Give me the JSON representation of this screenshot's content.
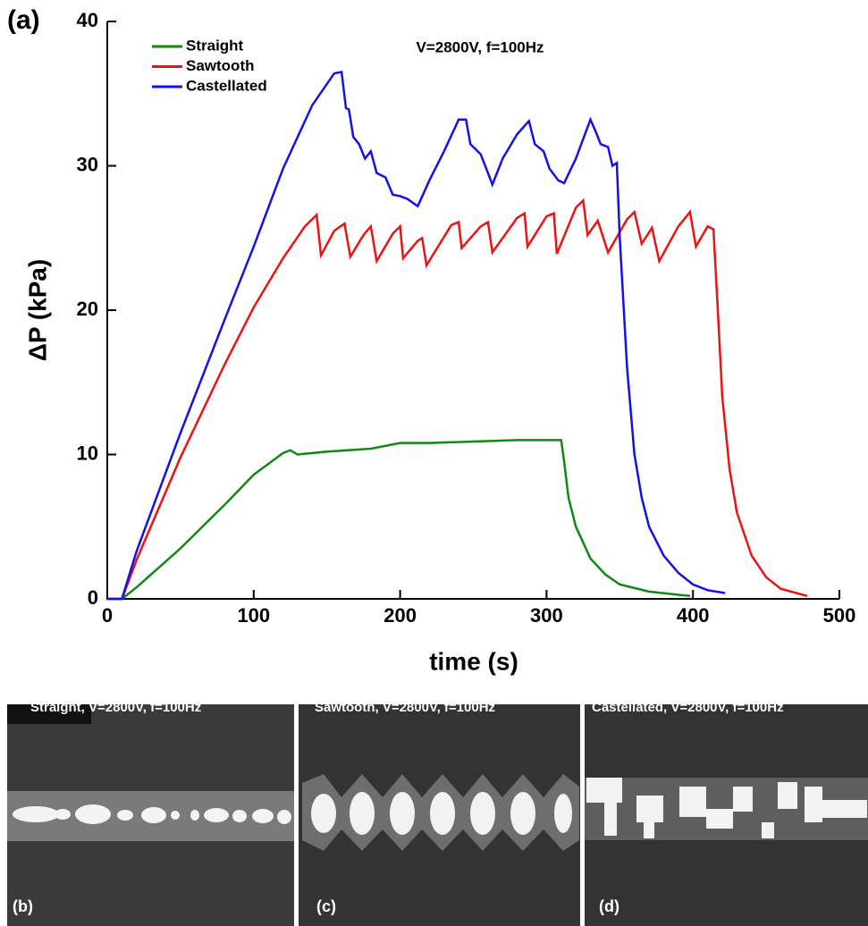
{
  "chart_data": {
    "type": "line",
    "panel_label": "(a)",
    "title": "V=2800V, f=100Hz",
    "x_label": "time (s)",
    "y_label": "ΔP (kPa)",
    "xlim": [
      0,
      500
    ],
    "xticks": [
      0,
      100,
      200,
      300,
      400,
      500
    ],
    "ylim": [
      0,
      40
    ],
    "yticks": [
      0,
      10,
      20,
      30,
      40
    ],
    "legend": "upper left",
    "series": [
      {
        "name": "Straight",
        "color": "#118811",
        "x": [
          0,
          10,
          20,
          50,
          80,
          100,
          120,
          125,
          130,
          150,
          180,
          200,
          220,
          250,
          280,
          300,
          310,
          312,
          315,
          320,
          330,
          340,
          350,
          370,
          398
        ],
        "values": [
          0,
          0,
          0.8,
          3.5,
          6.5,
          8.6,
          10.1,
          10.3,
          10.0,
          10.2,
          10.4,
          10.8,
          10.8,
          10.9,
          11.0,
          11.0,
          11.0,
          9.5,
          7,
          5,
          2.8,
          1.7,
          1.0,
          0.5,
          0.2
        ]
      },
      {
        "name": "Sawtooth",
        "color": "#ee1111",
        "x": [
          0,
          10,
          20,
          50,
          80,
          100,
          120,
          135,
          143,
          146,
          155,
          162,
          166,
          175,
          180,
          184,
          195,
          200,
          202,
          212,
          215,
          218,
          235,
          240,
          242,
          255,
          260,
          263,
          280,
          285,
          287,
          300,
          305,
          307,
          320,
          325,
          328,
          335,
          342,
          355,
          360,
          365,
          372,
          377,
          390,
          398,
          402,
          410,
          414,
          417,
          420,
          425,
          430,
          440,
          450,
          460,
          478
        ],
        "values": [
          0,
          0,
          2.7,
          9.8,
          16.2,
          20.2,
          23.6,
          25.8,
          26.6,
          23.8,
          25.5,
          26.0,
          23.7,
          25.2,
          25.8,
          23.4,
          25.3,
          25.8,
          23.6,
          24.8,
          25.0,
          23.1,
          25.9,
          26.1,
          24.3,
          25.8,
          26.1,
          24.0,
          26.4,
          26.7,
          24.4,
          26.5,
          26.7,
          23.9,
          27.1,
          27.6,
          25.2,
          26.2,
          24.0,
          26.3,
          26.8,
          24.6,
          25.7,
          23.4,
          25.8,
          26.8,
          24.4,
          25.8,
          25.6,
          20,
          14,
          9,
          6,
          3,
          1.5,
          0.7,
          0.2
        ]
      },
      {
        "name": "Castellated",
        "color": "#1111ee",
        "x": [
          0,
          10,
          20,
          50,
          80,
          100,
          120,
          140,
          155,
          160,
          163,
          165,
          168,
          172,
          176,
          180,
          184,
          190,
          195,
          200,
          205,
          212,
          220,
          230,
          240,
          245,
          248,
          255,
          260,
          263,
          270,
          280,
          288,
          292,
          298,
          302,
          308,
          312,
          320,
          330,
          333,
          337,
          342,
          345,
          348,
          350,
          355,
          360,
          365,
          370,
          380,
          390,
          400,
          410,
          422
        ],
        "values": [
          0,
          0,
          3.3,
          11.5,
          19.3,
          24.4,
          29.8,
          34.2,
          36.4,
          36.5,
          34,
          33.9,
          32,
          31.5,
          30.5,
          31,
          29.5,
          29.2,
          28,
          27.9,
          27.7,
          27.2,
          29,
          31,
          33.2,
          33.2,
          31.5,
          30.8,
          29.5,
          28.7,
          30.5,
          32.2,
          33.1,
          31.5,
          31,
          29.8,
          29,
          28.8,
          30.5,
          33.2,
          32.5,
          31.5,
          31.3,
          30,
          30.2,
          25,
          16,
          10,
          7,
          5,
          3,
          1.8,
          1.0,
          0.6,
          0.4
        ]
      }
    ]
  },
  "panels": [
    {
      "caption": "Straight, V=2800V, f=100Hz",
      "label": "(b)"
    },
    {
      "caption": "Sawtooth, V=2800V, f=100Hz",
      "label": "(c)"
    },
    {
      "caption": "Castellated, V=2800V, f=100Hz",
      "label": "(d)"
    }
  ]
}
